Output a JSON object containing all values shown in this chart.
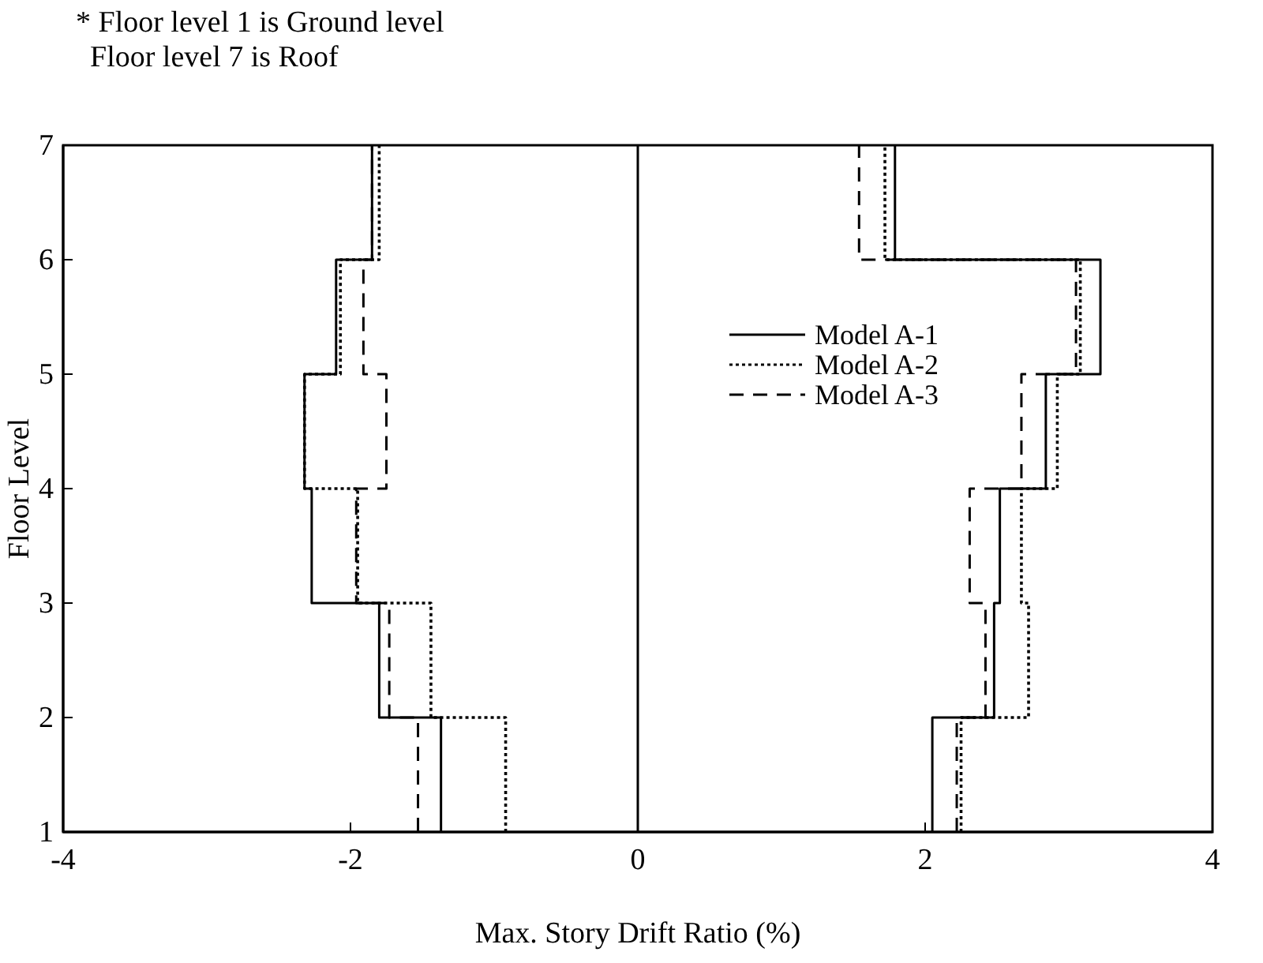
{
  "chart_data": {
    "type": "step",
    "orientation": "horizontal",
    "xlabel": "Max. Story Drift Ratio (%)",
    "ylabel": "Floor Level",
    "annotations": [
      "* Floor level 1 is Ground level",
      "Floor level 7 is Roof"
    ],
    "xlim": [
      -4,
      4
    ],
    "xticks": [
      -4,
      -2,
      0,
      2,
      4
    ],
    "ylim": [
      1,
      7
    ],
    "yticks": [
      1,
      2,
      3,
      4,
      5,
      6,
      7
    ],
    "grid": false,
    "legend": "right",
    "marker": "none",
    "ref_lines": [
      {
        "axis": "x",
        "value": 0,
        "color": "#000000",
        "line_style": "solid"
      }
    ],
    "series": [
      {
        "name": "Model A-1",
        "color": "#000000",
        "line_style": "solid",
        "x": [
          1,
          2,
          3,
          4,
          5,
          6,
          7
        ],
        "values": [
          2.05,
          2.48,
          2.52,
          2.84,
          3.22,
          1.79,
          1.79
        ]
      },
      {
        "name": "Model A-2",
        "color": "#000000",
        "line_style": "dotted",
        "x": [
          1,
          2,
          3,
          4,
          5,
          6,
          7
        ],
        "values": [
          2.25,
          2.72,
          2.67,
          2.92,
          3.08,
          1.72,
          1.72
        ]
      },
      {
        "name": "Model A-3",
        "color": "#000000",
        "line_style": "dashed",
        "x": [
          1,
          2,
          3,
          4,
          5,
          6,
          7
        ],
        "values": [
          2.22,
          2.42,
          2.31,
          2.67,
          3.05,
          1.54,
          1.54
        ]
      },
      {
        "color": "#000000",
        "line_style": "solid",
        "x": [
          1,
          2,
          3,
          4,
          5,
          6,
          7
        ],
        "values": [
          -1.37,
          -1.8,
          -2.27,
          -2.32,
          -2.1,
          -1.85,
          -1.85
        ]
      },
      {
        "color": "#000000",
        "line_style": "dotted",
        "x": [
          1,
          2,
          3,
          4,
          5,
          6,
          7
        ],
        "values": [
          -0.92,
          -1.44,
          -1.95,
          -2.32,
          -2.07,
          -1.8,
          -1.8
        ]
      },
      {
        "color": "#000000",
        "line_style": "dashed",
        "x": [
          1,
          2,
          3,
          4,
          5,
          6,
          7
        ],
        "values": [
          -1.53,
          -1.73,
          -1.96,
          -1.75,
          -1.91,
          -1.85,
          -1.85
        ]
      }
    ]
  }
}
